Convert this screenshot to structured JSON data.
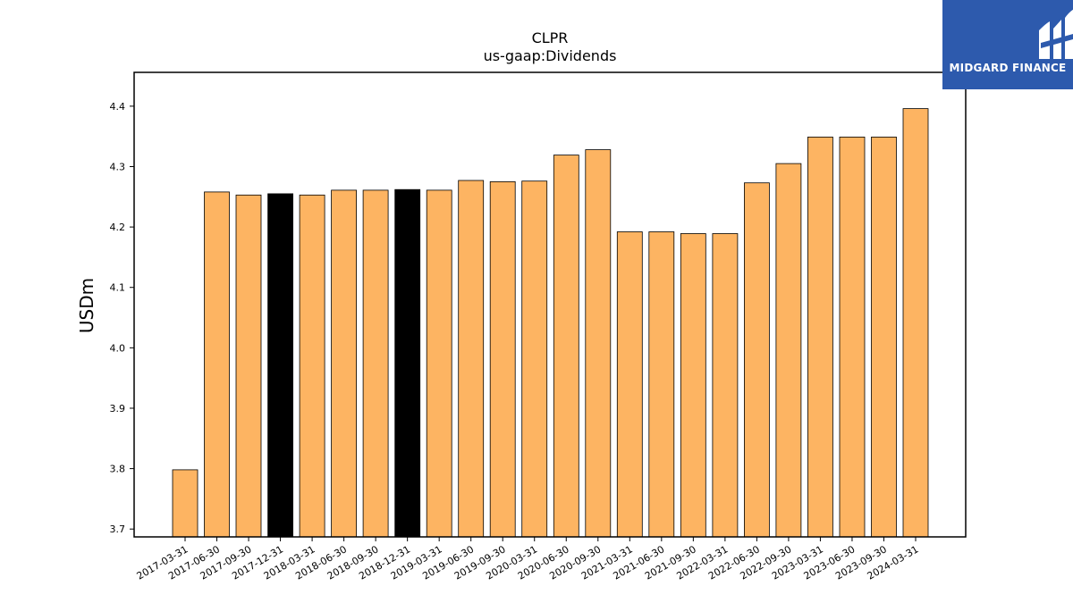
{
  "chart_data": {
    "type": "bar",
    "title": "CLPR",
    "subtitle": "us-gaap:Dividends",
    "xlabel": "",
    "ylabel": "USDm",
    "ylim": [
      3.687,
      4.456
    ],
    "yticks": [
      "3.7",
      "3.8",
      "3.9",
      "4.0",
      "4.1",
      "4.2",
      "4.3",
      "4.4"
    ],
    "grid": false,
    "categories": [
      "2017-03-31",
      "2017-06-30",
      "2017-09-30",
      "2017-12-31",
      "2018-03-31",
      "2018-06-30",
      "2018-09-30",
      "2018-12-31",
      "2019-03-31",
      "2019-06-30",
      "2019-09-30",
      "2020-03-31",
      "2020-06-30",
      "2020-09-30",
      "2021-03-31",
      "2021-06-30",
      "2021-09-30",
      "2022-03-31",
      "2022-06-30",
      "2022-09-30",
      "2023-03-31",
      "2023-06-30",
      "2023-09-30",
      "2024-03-31"
    ],
    "values": [
      3.798,
      4.258,
      4.253,
      4.255,
      4.253,
      4.261,
      4.261,
      4.262,
      4.261,
      4.277,
      4.275,
      4.276,
      4.319,
      4.328,
      4.192,
      4.192,
      4.189,
      4.189,
      4.273,
      4.305,
      4.349,
      4.349,
      4.349,
      4.396
    ],
    "highlighted": [
      false,
      false,
      false,
      true,
      false,
      false,
      false,
      true,
      false,
      false,
      false,
      false,
      false,
      false,
      false,
      false,
      false,
      false,
      false,
      false,
      false,
      false,
      false,
      false
    ],
    "colors": {
      "bar": "#fdb462",
      "highlight": "#000000",
      "edge": "#000000"
    }
  },
  "logo": {
    "text": "MIDGARD FINANCE",
    "background": "#2d5aad"
  }
}
